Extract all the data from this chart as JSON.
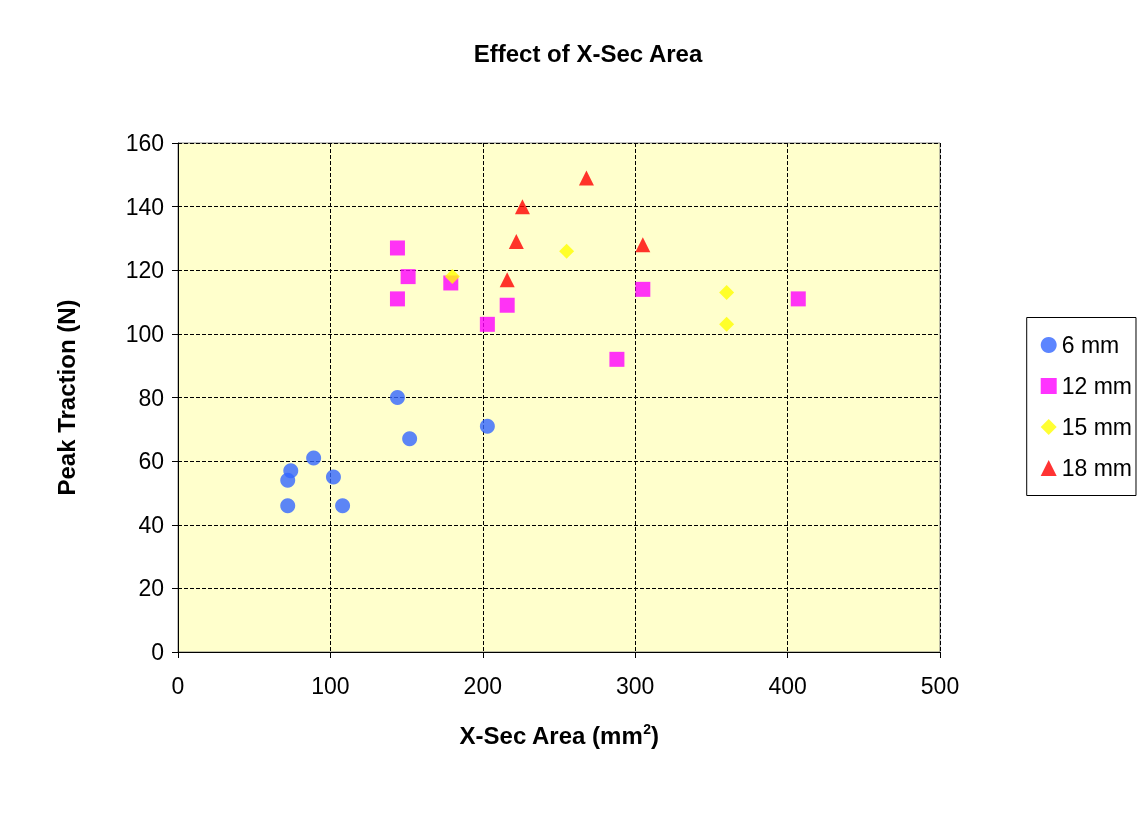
{
  "chart_data": {
    "type": "scatter",
    "title": "Effect of X-Sec Area",
    "xlabel": "X-Sec Area (mm$^{2}$)",
    "ylabel": "Peak Traction (N)",
    "xlim": [
      0,
      500
    ],
    "xticks": [
      0,
      100,
      200,
      300,
      400,
      500
    ],
    "ylim": [
      0,
      160
    ],
    "yticks": [
      0,
      20,
      40,
      60,
      80,
      100,
      120,
      140,
      160
    ],
    "grid": true,
    "legend": "right",
    "series": [
      {
        "name": "6 mm",
        "color": "#3366ff",
        "marker": "circle",
        "x": [
          72,
          74,
          72,
          89,
          102,
          108,
          144,
          152,
          203
        ],
        "values": [
          54,
          57,
          46,
          61,
          55,
          46,
          80,
          67,
          71
        ]
      },
      {
        "name": "12 mm",
        "color": "#ff00ff",
        "marker": "square",
        "x": [
          144,
          151,
          144,
          179,
          203,
          216,
          288,
          305,
          407
        ],
        "values": [
          127,
          118,
          111,
          116,
          103,
          109,
          92,
          114,
          111
        ]
      },
      {
        "name": "15 mm",
        "color": "#ffff00",
        "marker": "diamond",
        "x": [
          180,
          255,
          360,
          360
        ],
        "values": [
          118,
          126,
          113,
          103
        ]
      },
      {
        "name": "18 mm",
        "color": "#ff0000",
        "marker": "triangle",
        "x": [
          216,
          222,
          226,
          268,
          305
        ],
        "values": [
          117,
          129,
          140,
          149,
          128
        ]
      }
    ]
  }
}
